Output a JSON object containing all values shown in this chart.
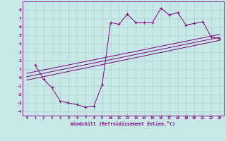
{
  "xlabel": "Windchill (Refroidissement éolien,°C)",
  "bg_color": "#c8e8e8",
  "grid_color": "#a8d0d0",
  "line_color": "#800080",
  "xlim": [
    -0.5,
    23.5
  ],
  "ylim": [
    -4.5,
    9.0
  ],
  "xticks": [
    0,
    1,
    2,
    3,
    4,
    5,
    6,
    7,
    8,
    9,
    10,
    11,
    12,
    13,
    14,
    15,
    16,
    17,
    18,
    19,
    20,
    21,
    22,
    23
  ],
  "yticks": [
    -4,
    -3,
    -2,
    -1,
    0,
    1,
    2,
    3,
    4,
    5,
    6,
    7,
    8
  ],
  "scatter_x": [
    1,
    2,
    3,
    4,
    5,
    6,
    7,
    8,
    9,
    10,
    11,
    12,
    13,
    14,
    15,
    16,
    17,
    18,
    19,
    20,
    21,
    22,
    23
  ],
  "scatter_y": [
    1.5,
    -0.2,
    -1.2,
    -2.8,
    -3.0,
    -3.2,
    -3.5,
    -3.4,
    -0.8,
    6.5,
    6.3,
    7.5,
    6.5,
    6.5,
    6.5,
    8.2,
    7.4,
    7.7,
    6.2,
    6.4,
    6.6,
    4.8,
    4.6
  ],
  "line1_x": [
    0,
    23
  ],
  "line1_y": [
    -0.3,
    4.4
  ],
  "line2_x": [
    0,
    23
  ],
  "line2_y": [
    0.5,
    5.1
  ],
  "line3_x": [
    0,
    23
  ],
  "line3_y": [
    0.1,
    4.75
  ]
}
